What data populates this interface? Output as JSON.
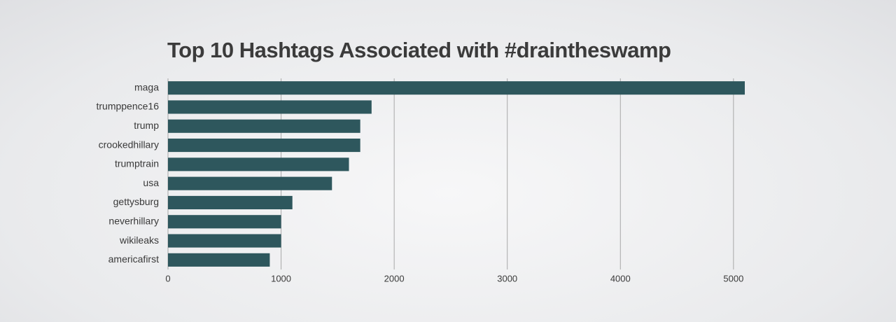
{
  "chart_data": {
    "type": "bar",
    "orientation": "horizontal",
    "title": "Top 10 Hashtags Associated with #draintheswamp",
    "categories": [
      "maga",
      "trumppence16",
      "trump",
      "crookedhillary",
      "trumptrain",
      "usa",
      "gettysburg",
      "neverhillary",
      "wikileaks",
      "americafirst"
    ],
    "values": [
      5100,
      1800,
      1700,
      1700,
      1600,
      1450,
      1100,
      1000,
      1000,
      900
    ],
    "color": "#2e575d",
    "xlim": [
      0,
      5100
    ],
    "xticks": [
      0,
      1000,
      2000,
      3000,
      4000,
      5000
    ],
    "grid": true
  }
}
